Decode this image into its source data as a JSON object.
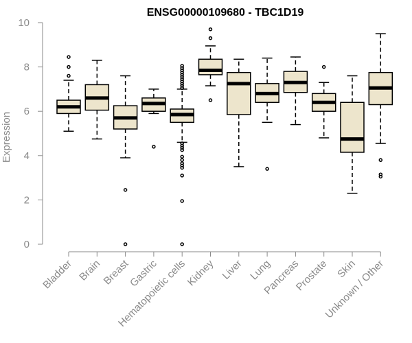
{
  "chart_data": {
    "type": "box",
    "title": "ENSG00000109680 - TBC1D19",
    "xlabel": "",
    "ylabel": "Expression",
    "ylim": [
      0,
      10
    ],
    "yticks": [
      "0",
      "2",
      "4",
      "6",
      "8",
      "10"
    ],
    "grid": false,
    "box_fill": "#ede5cc",
    "box_stroke": "#000000",
    "axis_color": "#8a8a8a",
    "categories": [
      "Bladder",
      "Brain",
      "Breast",
      "Gastric",
      "Hematopoietic cells",
      "Kidney",
      "Liver",
      "Lung",
      "Pancreas",
      "Prostate",
      "Skin",
      "Unknown / Other"
    ],
    "boxes": [
      {
        "whisker_low": 5.1,
        "q1": 5.9,
        "median": 6.2,
        "q3": 6.5,
        "whisker_high": 7.4,
        "outliers": [
          7.6,
          8.0,
          8.45
        ]
      },
      {
        "whisker_low": 4.75,
        "q1": 6.05,
        "median": 6.6,
        "q3": 7.2,
        "whisker_high": 8.3,
        "outliers": []
      },
      {
        "whisker_low": 3.9,
        "q1": 5.2,
        "median": 5.7,
        "q3": 6.25,
        "whisker_high": 7.6,
        "outliers": [
          2.45,
          0.0
        ]
      },
      {
        "whisker_low": 5.9,
        "q1": 6.0,
        "median": 6.35,
        "q3": 6.6,
        "whisker_high": 7.0,
        "outliers": [
          4.4
        ]
      },
      {
        "whisker_low": 4.6,
        "q1": 5.5,
        "median": 5.85,
        "q3": 6.1,
        "whisker_high": 7.0,
        "outliers": [
          8.05,
          7.95,
          7.85,
          7.75,
          7.65,
          7.55,
          7.45,
          7.35,
          7.25,
          7.15,
          7.05,
          4.55,
          4.45,
          4.35,
          4.25,
          3.95,
          3.8,
          3.65,
          3.55,
          3.45,
          3.1,
          1.95,
          0.0
        ]
      },
      {
        "whisker_low": 7.15,
        "q1": 7.65,
        "median": 7.85,
        "q3": 8.35,
        "whisker_high": 8.95,
        "outliers": [
          9.3,
          9.7,
          6.5
        ]
      },
      {
        "whisker_low": 3.5,
        "q1": 5.85,
        "median": 7.25,
        "q3": 7.75,
        "whisker_high": 8.35,
        "outliers": []
      },
      {
        "whisker_low": 5.5,
        "q1": 6.4,
        "median": 6.8,
        "q3": 7.25,
        "whisker_high": 8.4,
        "outliers": [
          3.4
        ]
      },
      {
        "whisker_low": 5.4,
        "q1": 6.85,
        "median": 7.3,
        "q3": 7.8,
        "whisker_high": 8.45,
        "outliers": []
      },
      {
        "whisker_low": 4.8,
        "q1": 6.0,
        "median": 6.4,
        "q3": 6.8,
        "whisker_high": 7.3,
        "outliers": [
          8.0
        ]
      },
      {
        "whisker_low": 2.3,
        "q1": 4.15,
        "median": 4.75,
        "q3": 6.4,
        "whisker_high": 7.6,
        "outliers": []
      },
      {
        "whisker_low": 4.55,
        "q1": 6.3,
        "median": 7.05,
        "q3": 7.75,
        "whisker_high": 9.5,
        "outliers": [
          3.8,
          3.15,
          3.05
        ]
      }
    ]
  }
}
